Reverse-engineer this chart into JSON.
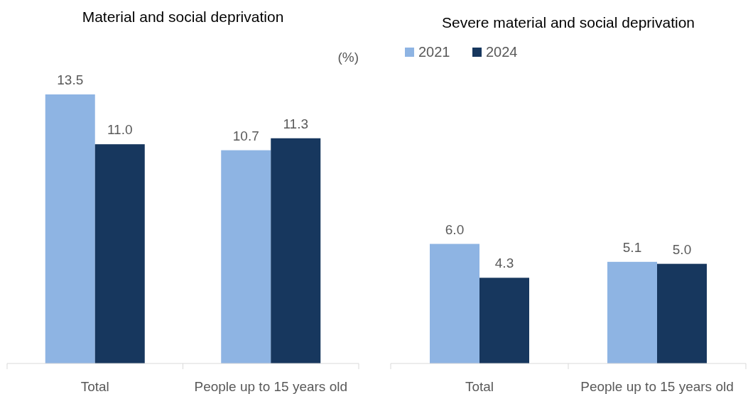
{
  "chart_data": [
    {
      "type": "bar",
      "title": "Material and social deprivation",
      "ylabel": "(%)",
      "categories": [
        "Total",
        "People up to 15 years old"
      ],
      "series": [
        {
          "color": "#8eb4e3",
          "values": [
            13.5,
            10.7
          ],
          "value_labels": [
            "13.5",
            "10.7"
          ]
        },
        {
          "color": "#17375e",
          "values": [
            11.0,
            11.3
          ],
          "value_labels": [
            "11.0",
            "11.3"
          ]
        }
      ],
      "legend": false
    },
    {
      "type": "bar",
      "title": "Severe material and social deprivation",
      "categories": [
        "Total",
        "People up to 15 years old"
      ],
      "series": [
        {
          "name": "2021",
          "color": "#8eb4e3",
          "values": [
            6.0,
            5.1
          ],
          "value_labels": [
            "6.0",
            "5.1"
          ]
        },
        {
          "name": "2024",
          "color": "#17375e",
          "values": [
            4.3,
            5.0
          ],
          "value_labels": [
            "4.3",
            "5.0"
          ]
        }
      ],
      "legend": "top left"
    }
  ]
}
